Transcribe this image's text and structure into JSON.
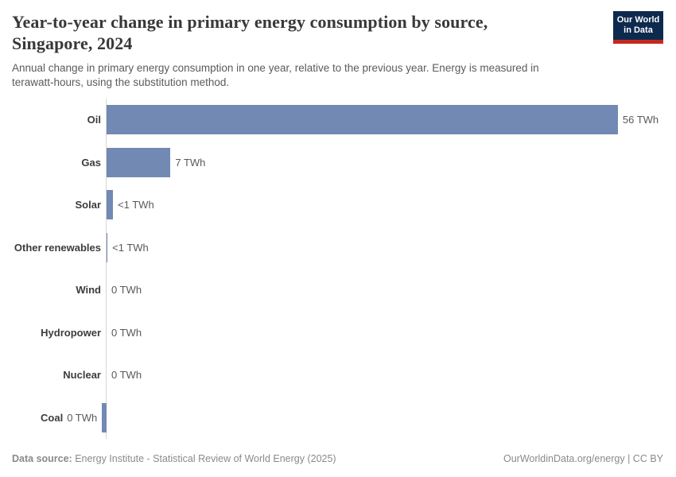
{
  "header": {
    "title": "Year-to-year change in primary energy consumption by source, Singapore, 2024",
    "title_lines": [
      "Year-to-year change in primary energy consumption by source,",
      "Singapore, 2024"
    ],
    "subtitle": "Annual change in primary energy consumption in one year, relative to the previous year. Energy is measured in terawatt-hours, using the substitution method.",
    "subtitle_lines": [
      "Annual change in primary energy consumption in one year, relative to the previous year. Energy is measured in",
      "terawatt-hours, using the substitution method."
    ],
    "logo": {
      "line1": "Our World",
      "line2": "in Data",
      "bg_color": "#0d2a4e",
      "accent_color": "#c4281f"
    }
  },
  "chart_data": {
    "type": "bar",
    "orientation": "horizontal",
    "title": "Year-to-year change in primary energy consumption by source, Singapore, 2024",
    "unit": "TWh",
    "categories": [
      "Oil",
      "Gas",
      "Solar",
      "Other renewables",
      "Wind",
      "Hydropower",
      "Nuclear",
      "Coal"
    ],
    "values": [
      56,
      7,
      0.7,
      0.1,
      0,
      0,
      0,
      -0.5
    ],
    "value_labels": [
      "56 TWh",
      "7 TWh",
      "<1 TWh",
      "<1 TWh",
      "0 TWh",
      "0 TWh",
      "0 TWh",
      "0 TWh"
    ],
    "bar_color": "#7189b3",
    "axis_color": "#d6d6d6",
    "xlim": [
      -1,
      62
    ],
    "grid": false,
    "legend": "none"
  },
  "footer": {
    "datasource_label": "Data source:",
    "datasource_text": " Energy Institute - Statistical Review of World Energy (2025)",
    "credit": "OurWorldinData.org/energy | CC BY"
  }
}
